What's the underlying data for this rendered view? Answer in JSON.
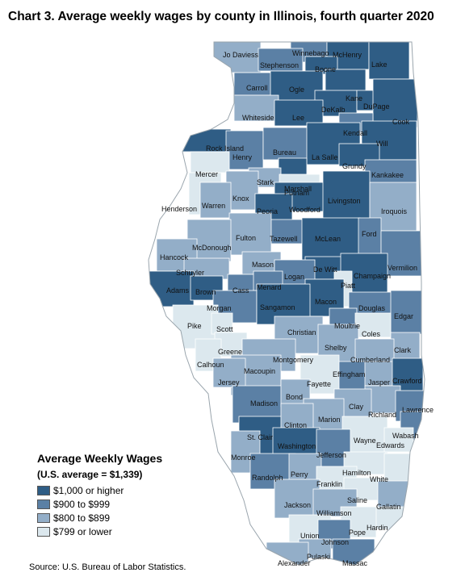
{
  "title": "Chart 3. Average weekly wages by county in Illinois, fourth quarter 2020",
  "legend": {
    "title": "Average Weekly Wages",
    "subtitle": "(U.S. average = $1,339)",
    "items": [
      {
        "label": "$1,000 or higher",
        "color": "#2f5d85"
      },
      {
        "label": "$900 to $999",
        "color": "#5b80a5"
      },
      {
        "label": "$800 to $899",
        "color": "#93aec8"
      },
      {
        "label": "$799 or lower",
        "color": "#dce8ee"
      }
    ]
  },
  "source": "Source: U.S. Bureau of Labor Statistics.",
  "counties": [
    {
      "name": "Jo Daviess",
      "cls": 2
    },
    {
      "name": "Winnebago",
      "cls": 1
    },
    {
      "name": "McHenry",
      "cls": 0
    },
    {
      "name": "Stephenson",
      "cls": 1
    },
    {
      "name": "Boone",
      "cls": 0
    },
    {
      "name": "Lake",
      "cls": 0
    },
    {
      "name": "Carroll",
      "cls": 1
    },
    {
      "name": "Ogle",
      "cls": 0
    },
    {
      "name": "Kane",
      "cls": 0
    },
    {
      "name": "DeKalb",
      "cls": 0
    },
    {
      "name": "DuPage",
      "cls": 0
    },
    {
      "name": "Cook",
      "cls": 0
    },
    {
      "name": "Whiteside",
      "cls": 2
    },
    {
      "name": "Lee",
      "cls": 0
    },
    {
      "name": "Kendall",
      "cls": 1
    },
    {
      "name": "Will",
      "cls": 0
    },
    {
      "name": "Rock Island",
      "cls": 0
    },
    {
      "name": "Henry",
      "cls": 1
    },
    {
      "name": "Bureau",
      "cls": 1
    },
    {
      "name": "La Salle",
      "cls": 0
    },
    {
      "name": "Grundy",
      "cls": 0
    },
    {
      "name": "Mercer",
      "cls": 3
    },
    {
      "name": "Putnam",
      "cls": 0
    },
    {
      "name": "Kankakee",
      "cls": 1
    },
    {
      "name": "Stark",
      "cls": 2
    },
    {
      "name": "Marshall",
      "cls": 3
    },
    {
      "name": "Knox",
      "cls": 2
    },
    {
      "name": "Henderson",
      "cls": 3
    },
    {
      "name": "Warren",
      "cls": 2
    },
    {
      "name": "Woodford",
      "cls": 0
    },
    {
      "name": "Livingston",
      "cls": 0
    },
    {
      "name": "Iroquois",
      "cls": 2
    },
    {
      "name": "Peoria",
      "cls": 0
    },
    {
      "name": "Tazewell",
      "cls": 1
    },
    {
      "name": "Fulton",
      "cls": 2
    },
    {
      "name": "McDonough",
      "cls": 2
    },
    {
      "name": "McLean",
      "cls": 0
    },
    {
      "name": "Ford",
      "cls": 1
    },
    {
      "name": "Hancock",
      "cls": 2
    },
    {
      "name": "Mason",
      "cls": 2
    },
    {
      "name": "Vermilion",
      "cls": 1
    },
    {
      "name": "Schuyler",
      "cls": 2
    },
    {
      "name": "De Witt",
      "cls": 0
    },
    {
      "name": "Logan",
      "cls": 1
    },
    {
      "name": "Champaign",
      "cls": 0
    },
    {
      "name": "Adams",
      "cls": 0
    },
    {
      "name": "Brown",
      "cls": 0
    },
    {
      "name": "Cass",
      "cls": 1
    },
    {
      "name": "Menard",
      "cls": 1
    },
    {
      "name": "Piatt",
      "cls": 3
    },
    {
      "name": "Macon",
      "cls": 0
    },
    {
      "name": "Morgan",
      "cls": 1
    },
    {
      "name": "Sangamon",
      "cls": 0
    },
    {
      "name": "Douglas",
      "cls": 1
    },
    {
      "name": "Edgar",
      "cls": 1
    },
    {
      "name": "Moultrie",
      "cls": 1
    },
    {
      "name": "Pike",
      "cls": 3
    },
    {
      "name": "Scott",
      "cls": 3
    },
    {
      "name": "Christian",
      "cls": 2
    },
    {
      "name": "Coles",
      "cls": 3
    },
    {
      "name": "Shelby",
      "cls": 2
    },
    {
      "name": "Greene",
      "cls": 3
    },
    {
      "name": "Clark",
      "cls": 2
    },
    {
      "name": "Calhoun",
      "cls": 3
    },
    {
      "name": "Montgomery",
      "cls": 2
    },
    {
      "name": "Cumberland",
      "cls": 2
    },
    {
      "name": "Macoupin",
      "cls": 2
    },
    {
      "name": "Effingham",
      "cls": 1
    },
    {
      "name": "Jersey",
      "cls": 2
    },
    {
      "name": "Jasper",
      "cls": 2
    },
    {
      "name": "Crawford",
      "cls": 0
    },
    {
      "name": "Fayette",
      "cls": 3
    },
    {
      "name": "Madison",
      "cls": 1
    },
    {
      "name": "Bond",
      "cls": 2
    },
    {
      "name": "Richland",
      "cls": 2
    },
    {
      "name": "Clay",
      "cls": 2
    },
    {
      "name": "Lawrence",
      "cls": 1
    },
    {
      "name": "Marion",
      "cls": 2
    },
    {
      "name": "St. Clair",
      "cls": 0
    },
    {
      "name": "Clinton",
      "cls": 2
    },
    {
      "name": "Wabash",
      "cls": 1
    },
    {
      "name": "Wayne",
      "cls": 3
    },
    {
      "name": "Edwards",
      "cls": 3
    },
    {
      "name": "Washington",
      "cls": 0
    },
    {
      "name": "Monroe",
      "cls": 2
    },
    {
      "name": "Jefferson",
      "cls": 1
    },
    {
      "name": "Hamilton",
      "cls": 3
    },
    {
      "name": "White",
      "cls": 3
    },
    {
      "name": "Randolph",
      "cls": 1
    },
    {
      "name": "Perry",
      "cls": 2
    },
    {
      "name": "Franklin",
      "cls": 3
    },
    {
      "name": "Saline",
      "cls": 3
    },
    {
      "name": "Gallatin",
      "cls": 2
    },
    {
      "name": "Jackson",
      "cls": 2
    },
    {
      "name": "Williamson",
      "cls": 2
    },
    {
      "name": "Hardin",
      "cls": 3
    },
    {
      "name": "Pope",
      "cls": 3
    },
    {
      "name": "Union",
      "cls": 3
    },
    {
      "name": "Johnson",
      "cls": 1
    },
    {
      "name": "Pulaski",
      "cls": 2
    },
    {
      "name": "Alexander",
      "cls": 2
    },
    {
      "name": "Massac",
      "cls": 1
    }
  ]
}
